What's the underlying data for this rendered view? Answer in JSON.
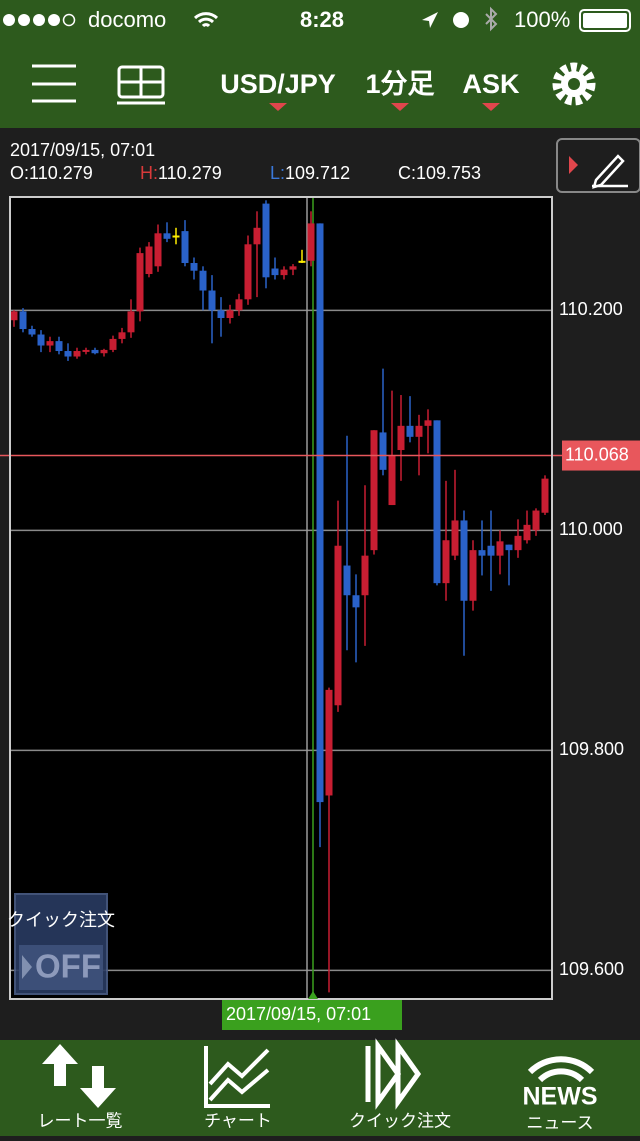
{
  "status_bar": {
    "carrier": "docomo",
    "time": "8:28",
    "battery": "100%"
  },
  "toolbar": {
    "pair": "USD/JPY",
    "timeframe": "1分足",
    "side": "ASK"
  },
  "info": {
    "datetime": "2017/09/15, 07:01",
    "open_key": "O:",
    "open": "110.279",
    "high_key": "H:",
    "high": "110.279",
    "low_key": "L:",
    "low": "109.712",
    "close_key": "C:",
    "close": "109.753"
  },
  "chart_data": {
    "type": "candlestick",
    "open": [
      110.191,
      110.199,
      110.183,
      110.178,
      110.168,
      110.172,
      110.163,
      110.158,
      110.163,
      110.164,
      110.161,
      110.164,
      110.174,
      110.18,
      110.199,
      110.233,
      110.24,
      110.27,
      110.268,
      110.272,
      110.243,
      110.236,
      110.218,
      110.2,
      110.193,
      110.2,
      110.21,
      110.26,
      110.297,
      110.238,
      110.232,
      110.237,
      110.245,
      110.245,
      110.279,
      109.759,
      109.841,
      109.968,
      109.941,
      109.941,
      109.982,
      110.089,
      110.023,
      110.073,
      110.095,
      110.085,
      110.095,
      110.1,
      109.952,
      109.977,
      110.009,
      109.936,
      109.982,
      109.986,
      109.977,
      109.987,
      109.982,
      109.991,
      110.0,
      110.016
    ],
    "high": [
      110.2,
      110.202,
      110.186,
      110.182,
      110.176,
      110.176,
      110.17,
      110.166,
      110.166,
      110.166,
      110.165,
      110.177,
      110.184,
      110.21,
      110.257,
      110.262,
      110.278,
      110.28,
      110.275,
      110.282,
      110.248,
      110.24,
      110.232,
      110.212,
      110.205,
      110.215,
      110.268,
      110.29,
      110.3,
      110.248,
      110.24,
      110.242,
      110.255,
      110.29,
      110.279,
      109.857,
      110.027,
      110.086,
      109.96,
      110.041,
      110.091,
      110.147,
      110.127,
      110.123,
      110.122,
      110.105,
      110.11,
      110.1,
      110.045,
      110.055,
      110.018,
      109.991,
      110.009,
      110.018,
      110.0,
      109.987,
      110.01,
      110.018,
      110.02,
      110.05
    ],
    "low": [
      110.185,
      110.18,
      110.176,
      110.162,
      110.162,
      110.16,
      110.154,
      110.156,
      110.16,
      110.16,
      110.158,
      110.162,
      110.17,
      110.175,
      110.19,
      110.23,
      110.235,
      110.262,
      110.26,
      110.24,
      110.228,
      110.2,
      110.17,
      110.176,
      110.188,
      110.195,
      110.205,
      110.212,
      110.22,
      110.228,
      110.228,
      110.232,
      110.243,
      110.24,
      109.712,
      109.58,
      109.835,
      109.891,
      109.88,
      109.895,
      109.978,
      110.05,
      110.023,
      110.045,
      110.08,
      110.05,
      110.07,
      109.95,
      109.936,
      109.973,
      109.886,
      109.927,
      109.959,
      109.945,
      109.96,
      109.95,
      109.975,
      109.988,
      109.995,
      110.014
    ],
    "close": [
      110.199,
      110.183,
      110.178,
      110.168,
      110.172,
      110.163,
      110.158,
      110.163,
      110.164,
      110.161,
      110.164,
      110.174,
      110.18,
      110.199,
      110.252,
      110.258,
      110.27,
      110.265,
      110.268,
      110.243,
      110.236,
      110.218,
      110.2,
      110.193,
      110.2,
      110.21,
      110.26,
      110.275,
      110.23,
      110.232,
      110.237,
      110.24,
      110.245,
      110.279,
      109.753,
      109.855,
      109.986,
      109.941,
      109.93,
      109.977,
      110.091,
      110.055,
      110.068,
      110.095,
      110.085,
      110.095,
      110.1,
      109.952,
      109.991,
      110.009,
      109.936,
      109.982,
      109.977,
      109.977,
      109.99,
      109.982,
      109.995,
      110.005,
      110.018,
      110.047
    ],
    "up_color": "#c81e32",
    "down_color": "#2a62c9",
    "doji_color": "#ffee00",
    "ylim": [
      109.574,
      110.303
    ],
    "yticks": [
      {
        "value": 110.2,
        "label": "110.200"
      },
      {
        "value": 110.0,
        "label": "110.000"
      },
      {
        "value": 109.8,
        "label": "109.800"
      },
      {
        "value": 109.6,
        "label": "109.600"
      }
    ],
    "grid": true,
    "current_price": {
      "value": 110.068,
      "label": "110.068"
    },
    "cursor_label": "2017/09/15, 07:01"
  },
  "quick_order": {
    "label": "クイック注文",
    "state": "OFF"
  },
  "tabs": {
    "rates": "レート一覧",
    "chart": "チャート",
    "quick": "クイック注文",
    "news_icon": "NEWS",
    "news": "ニュース"
  }
}
